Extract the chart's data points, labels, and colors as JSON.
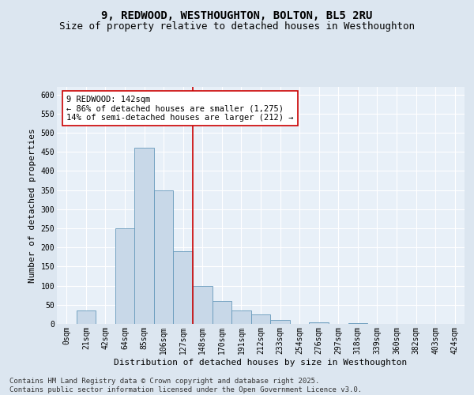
{
  "title": "9, REDWOOD, WESTHOUGHTON, BOLTON, BL5 2RU",
  "subtitle": "Size of property relative to detached houses in Westhoughton",
  "xlabel": "Distribution of detached houses by size in Westhoughton",
  "ylabel": "Number of detached properties",
  "bin_labels": [
    "0sqm",
    "21sqm",
    "42sqm",
    "64sqm",
    "85sqm",
    "106sqm",
    "127sqm",
    "148sqm",
    "170sqm",
    "191sqm",
    "212sqm",
    "233sqm",
    "254sqm",
    "276sqm",
    "297sqm",
    "318sqm",
    "339sqm",
    "360sqm",
    "382sqm",
    "403sqm",
    "424sqm"
  ],
  "bar_heights": [
    0,
    35,
    0,
    250,
    460,
    350,
    190,
    100,
    60,
    35,
    25,
    10,
    0,
    5,
    0,
    3,
    0,
    0,
    0,
    0,
    0
  ],
  "bar_color": "#c8d8e8",
  "bar_edge_color": "#6699bb",
  "vline_color": "#cc0000",
  "annotation_title": "9 REDWOOD: 142sqm",
  "annotation_line1": "← 86% of detached houses are smaller (1,275)",
  "annotation_line2": "14% of semi-detached houses are larger (212) →",
  "annotation_box_color": "#ffffff",
  "annotation_box_edge": "#cc0000",
  "ylim": [
    0,
    620
  ],
  "yticks": [
    0,
    50,
    100,
    150,
    200,
    250,
    300,
    350,
    400,
    450,
    500,
    550,
    600
  ],
  "bg_color": "#dce6f0",
  "plot_bg_color": "#e8f0f8",
  "footer1": "Contains HM Land Registry data © Crown copyright and database right 2025.",
  "footer2": "Contains public sector information licensed under the Open Government Licence v3.0.",
  "grid_color": "#ffffff",
  "title_fontsize": 10,
  "subtitle_fontsize": 9,
  "axis_fontsize": 8,
  "tick_fontsize": 7,
  "footer_fontsize": 6.5
}
